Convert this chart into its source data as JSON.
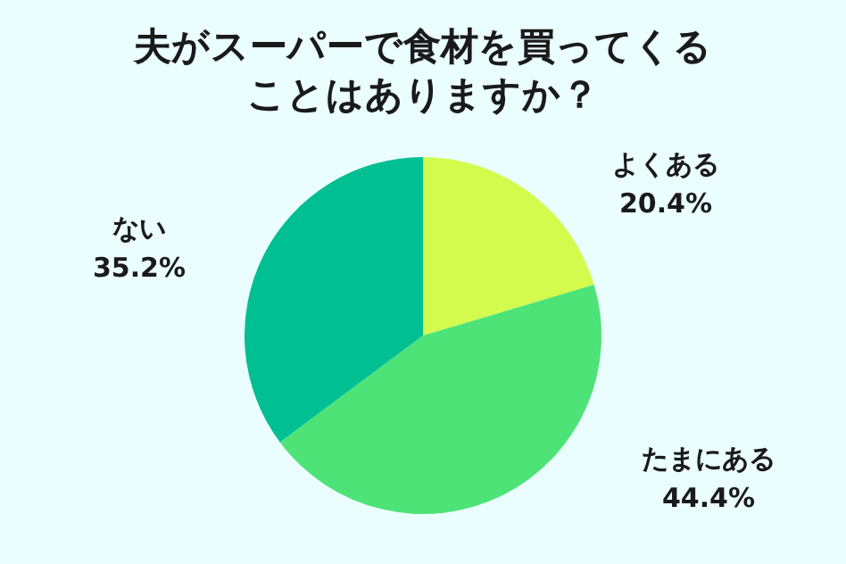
{
  "chart_data": {
    "type": "pie",
    "title": "夫がスーパーで食材を買ってくることはありますか？",
    "categories": [
      "よくある",
      "たまにある",
      "ない"
    ],
    "values": [
      20.4,
      44.4,
      35.2
    ],
    "value_labels": [
      "20.4%",
      "44.4%",
      "35.2%"
    ],
    "colors": [
      "#d2fb4e",
      "#4de377",
      "#00bf93"
    ]
  }
}
